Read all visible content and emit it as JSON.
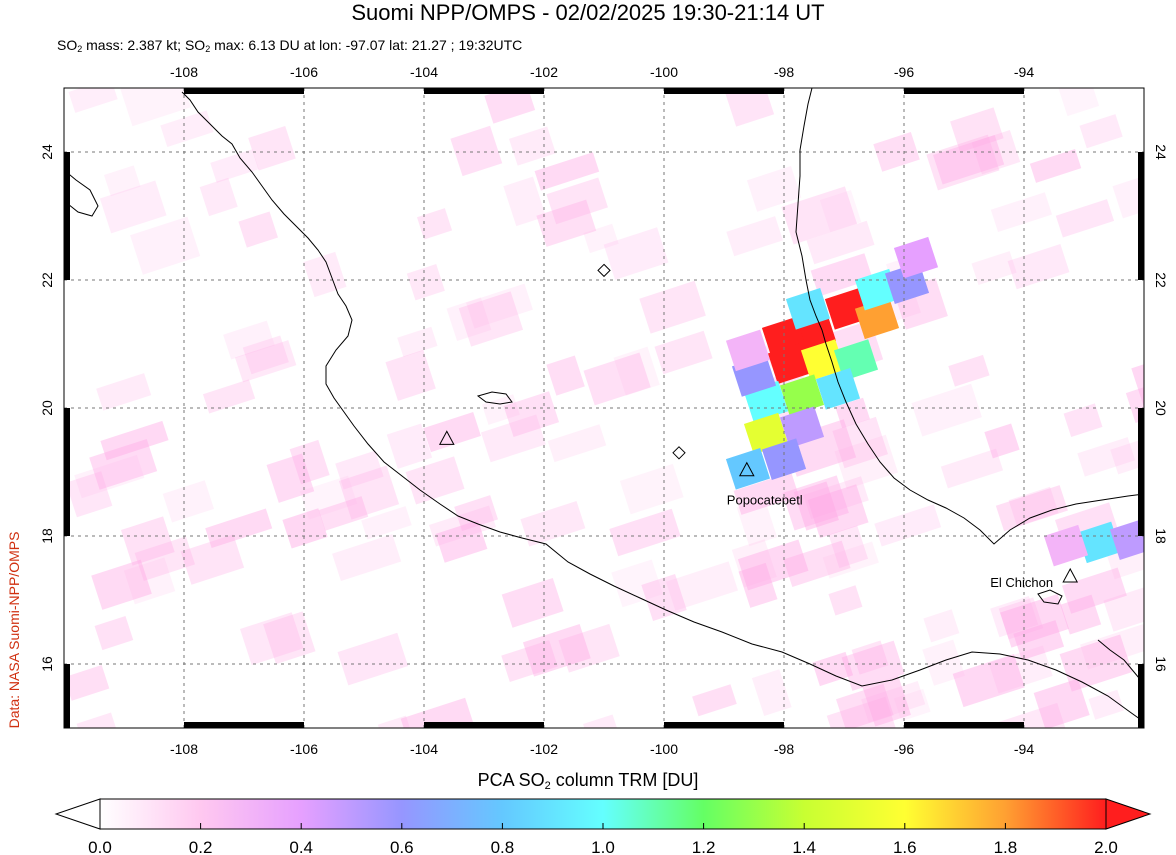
{
  "header": {
    "title": "Suomi NPP/OMPS - 02/02/2025 19:30-21:14 UT",
    "subtitle_part1": "SO",
    "subtitle_sub1": "2",
    "subtitle_part2": " mass: 2.387 kt; SO",
    "subtitle_sub2": "2",
    "subtitle_part3": " max: 6.13 DU at lon: -97.07 lat: 21.27 ; 19:32UTC"
  },
  "credit": "Data: NASA Suomi-NPP/OMPS",
  "map": {
    "lon_range": [
      -110,
      -92
    ],
    "lat_range": [
      15,
      25
    ],
    "lon_ticks": [
      -108,
      -106,
      -104,
      -102,
      -100,
      -98,
      -96,
      -94
    ],
    "lon_tick_labels": [
      "-108",
      "-106",
      "-104",
      "-102",
      "-100",
      "-98",
      "-96",
      "-94"
    ],
    "lat_ticks": [
      16,
      18,
      20,
      22,
      24
    ],
    "lat_tick_labels": [
      "16",
      "18",
      "20",
      "22",
      "24"
    ],
    "grid": "dotted",
    "volcanoes": [
      {
        "name": "Popocatepetl",
        "lon": -98.62,
        "lat": 19.02,
        "marker": "triangle"
      },
      {
        "name": "El Chichon",
        "lon": -93.23,
        "lat": 17.36,
        "marker": "triangle"
      },
      {
        "name": "",
        "lon": -103.62,
        "lat": 19.51,
        "marker": "triangle"
      },
      {
        "name": "",
        "lon": -101.0,
        "lat": 22.15,
        "marker": "diamond"
      },
      {
        "name": "",
        "lon": -99.75,
        "lat": 19.3,
        "marker": "diamond"
      }
    ],
    "so2_cells": [
      {
        "lon": -96.95,
        "lat": 21.55,
        "du": 2.0
      },
      {
        "lon": -97.5,
        "lat": 21.2,
        "du": 2.0
      },
      {
        "lon": -98.0,
        "lat": 21.1,
        "du": 2.0
      },
      {
        "lon": -97.9,
        "lat": 20.7,
        "du": 2.0
      },
      {
        "lon": -96.45,
        "lat": 21.4,
        "du": 1.8
      },
      {
        "lon": -97.35,
        "lat": 20.75,
        "du": 1.6
      },
      {
        "lon": -96.45,
        "lat": 21.85,
        "du": 1.0
      },
      {
        "lon": -97.6,
        "lat": 21.55,
        "du": 0.9
      },
      {
        "lon": -96.8,
        "lat": 20.75,
        "du": 1.1
      },
      {
        "lon": -97.1,
        "lat": 20.3,
        "du": 0.9
      },
      {
        "lon": -97.7,
        "lat": 20.2,
        "du": 1.3
      },
      {
        "lon": -98.3,
        "lat": 20.1,
        "du": 1.0
      },
      {
        "lon": -98.5,
        "lat": 20.5,
        "du": 0.6
      },
      {
        "lon": -98.3,
        "lat": 19.6,
        "du": 1.5
      },
      {
        "lon": -97.7,
        "lat": 19.7,
        "du": 0.5
      },
      {
        "lon": -98.0,
        "lat": 19.2,
        "du": 0.6
      },
      {
        "lon": -98.6,
        "lat": 19.05,
        "du": 0.8
      },
      {
        "lon": -95.95,
        "lat": 21.95,
        "du": 0.6
      },
      {
        "lon": -95.8,
        "lat": 22.35,
        "du": 0.4
      },
      {
        "lon": -98.6,
        "lat": 20.9,
        "du": 0.3
      },
      {
        "lon": -92.75,
        "lat": 17.9,
        "du": 0.9
      },
      {
        "lon": -92.2,
        "lat": 17.95,
        "du": 0.5
      },
      {
        "lon": -93.3,
        "lat": 17.85,
        "du": 0.3
      }
    ]
  },
  "colorbar": {
    "title_part1": "PCA SO",
    "title_sub": "2",
    "title_part2": " column TRM [DU]",
    "min": 0.0,
    "max": 2.0,
    "tick_values": [
      0.0,
      0.2,
      0.4,
      0.6,
      0.8,
      1.0,
      1.2,
      1.4,
      1.6,
      1.8,
      2.0
    ],
    "tick_labels": [
      "0.0",
      "0.2",
      "0.4",
      "0.6",
      "0.8",
      "1.0",
      "1.2",
      "1.4",
      "1.6",
      "1.8",
      "2.0"
    ],
    "colors": [
      "#ffffff",
      "#ffc8f0",
      "#e6a0ff",
      "#9696ff",
      "#64c8ff",
      "#64ffff",
      "#64ff64",
      "#c8ff32",
      "#ffff32",
      "#ffa032",
      "#ff1e1e"
    ],
    "extend": "both"
  }
}
